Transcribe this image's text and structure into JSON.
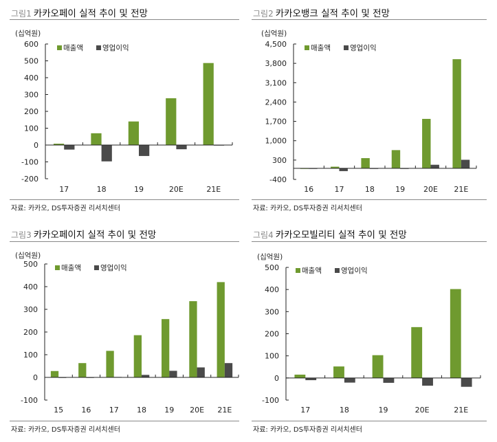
{
  "colors": {
    "revenue": "#6f9a2f",
    "operating_profit": "#4a4a4a"
  },
  "chart_data": [
    {
      "type": "bar",
      "fig_label": "그림1",
      "title": "카카오페이 실적 추이 및 전망",
      "unit": "(십억원)",
      "source": "자료: 카카오, DS투자증권 리서치센터",
      "categories": [
        "17",
        "18",
        "19",
        "20E",
        "21E"
      ],
      "ylim": [
        -200,
        600
      ],
      "yticks": [
        -200,
        -100,
        0,
        100,
        200,
        300,
        400,
        500,
        600
      ],
      "ytick_labels": [
        "-200",
        "-100",
        "0",
        "100",
        "200",
        "300",
        "400",
        "500",
        "600"
      ],
      "legend_position": "top-left",
      "series": [
        {
          "name": "매출액",
          "values": [
            8,
            70,
            140,
            278,
            487
          ]
        },
        {
          "name": "영업이익",
          "values": [
            -27,
            -97,
            -65,
            -25,
            -3
          ]
        }
      ]
    },
    {
      "type": "bar",
      "fig_label": "그림2",
      "title": "카카오뱅크 실적 추이 및 전망",
      "unit": "(십억원)",
      "source": "자료: 카카오, DS투자증권 리서치센터",
      "categories": [
        "16",
        "17",
        "18",
        "19",
        "20E",
        "21E"
      ],
      "ylim": [
        -400,
        4500
      ],
      "yticks": [
        -400,
        300,
        1000,
        1700,
        2400,
        3100,
        3800,
        4500
      ],
      "ytick_labels": [
        "-400",
        "300",
        "1,000",
        "1,700",
        "2,400",
        "3,100",
        "3,800",
        "4,500"
      ],
      "legend_position": "top-left",
      "series": [
        {
          "name": "매출액",
          "values": [
            0,
            60,
            370,
            660,
            1790,
            3950
          ]
        },
        {
          "name": "영업이익",
          "values": [
            -10,
            -100,
            -20,
            -10,
            130,
            310
          ]
        }
      ]
    },
    {
      "type": "bar",
      "fig_label": "그림3",
      "title": "카카오페이지 실적 추이 및 전망",
      "unit": "(십억원)",
      "source": "자료: 카카오, DS투자증권 리서치센터",
      "categories": [
        "15",
        "16",
        "17",
        "18",
        "19",
        "20E",
        "21E"
      ],
      "ylim": [
        -100,
        500
      ],
      "yticks": [
        -100,
        0,
        100,
        200,
        300,
        400,
        500
      ],
      "ytick_labels": [
        "-100",
        "0",
        "100",
        "200",
        "300",
        "400",
        "500"
      ],
      "legend_position": "top-left",
      "series": [
        {
          "name": "매출액",
          "values": [
            28,
            63,
            117,
            186,
            257,
            336,
            420
          ]
        },
        {
          "name": "영업이익",
          "values": [
            0,
            0,
            2,
            11,
            29,
            44,
            63
          ]
        }
      ]
    },
    {
      "type": "bar",
      "fig_label": "그림4",
      "title": "카카오모빌리티 실적 추이 및 전망",
      "unit": "(십억원)",
      "source": "자료: 카카오, DS투자증권 리서치센터",
      "categories": [
        "17",
        "18",
        "19",
        "20E",
        "21E"
      ],
      "ylim": [
        -100,
        500
      ],
      "yticks": [
        -100,
        0,
        100,
        200,
        300,
        400,
        500
      ],
      "ytick_labels": [
        "-100",
        "0",
        "100",
        "200",
        "300",
        "400",
        "500"
      ],
      "legend_position": "top-left",
      "series": [
        {
          "name": "매출액",
          "values": [
            15,
            52,
            103,
            230,
            402
          ]
        },
        {
          "name": "영업이익",
          "values": [
            -10,
            -21,
            -22,
            -35,
            -40
          ]
        }
      ]
    }
  ]
}
